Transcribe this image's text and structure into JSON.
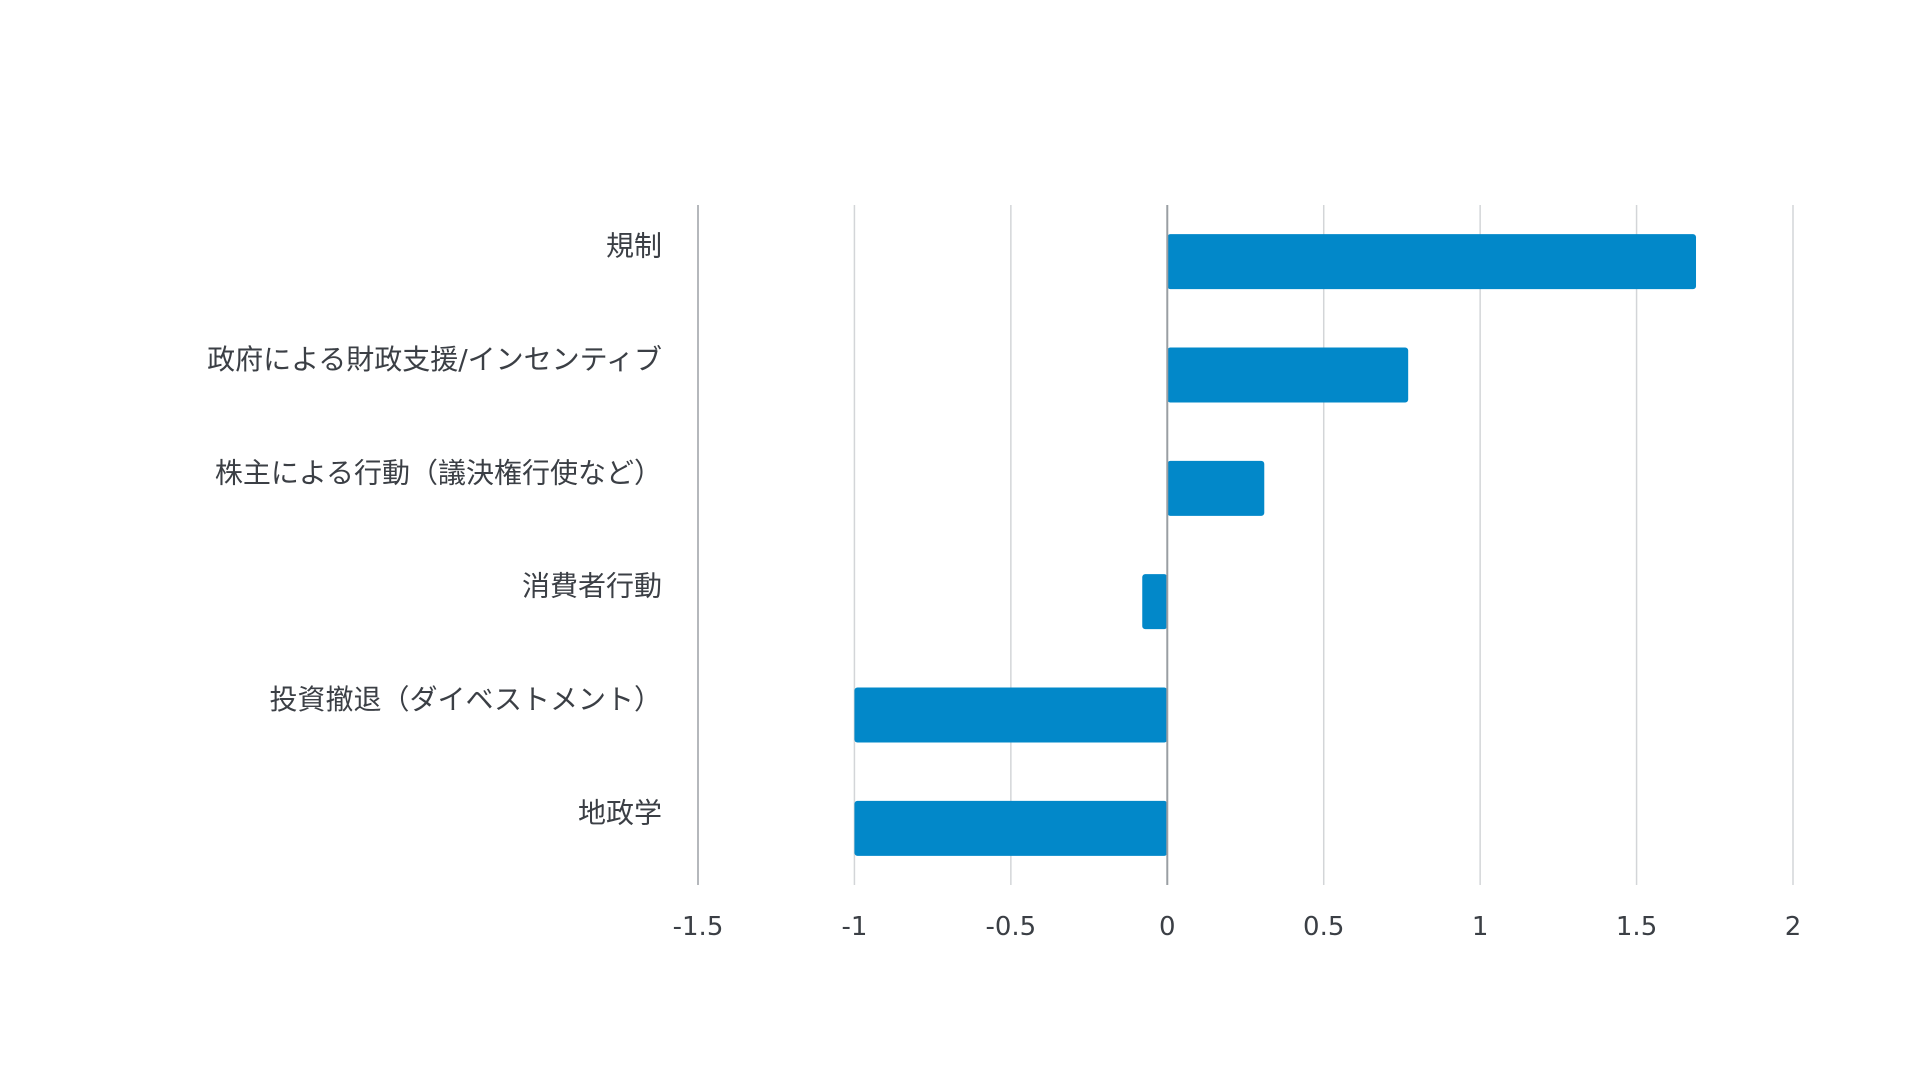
{
  "chart_data": {
    "type": "bar",
    "orientation": "horizontal",
    "title": "",
    "xlabel": "",
    "ylabel": "",
    "categories": [
      "規制",
      "政府による財政支援/インセンティブ",
      "株主による行動（議決権行使など）",
      "消費者行動",
      "投資撤退（ダイベストメント）",
      "地政学"
    ],
    "values": [
      1.69,
      0.77,
      0.31,
      -0.08,
      -1.0,
      -1.0
    ],
    "xlim": [
      -1.5,
      2
    ],
    "ticks": [
      -1.5,
      -1,
      -0.5,
      0,
      0.5,
      1,
      1.5,
      2
    ],
    "tick_labels": [
      "-1.5",
      "-1",
      "-0.5",
      "0",
      "0.5",
      "1",
      "1.5",
      "2"
    ],
    "grid": true,
    "legend": "none",
    "bar_color": "#0288c9"
  }
}
